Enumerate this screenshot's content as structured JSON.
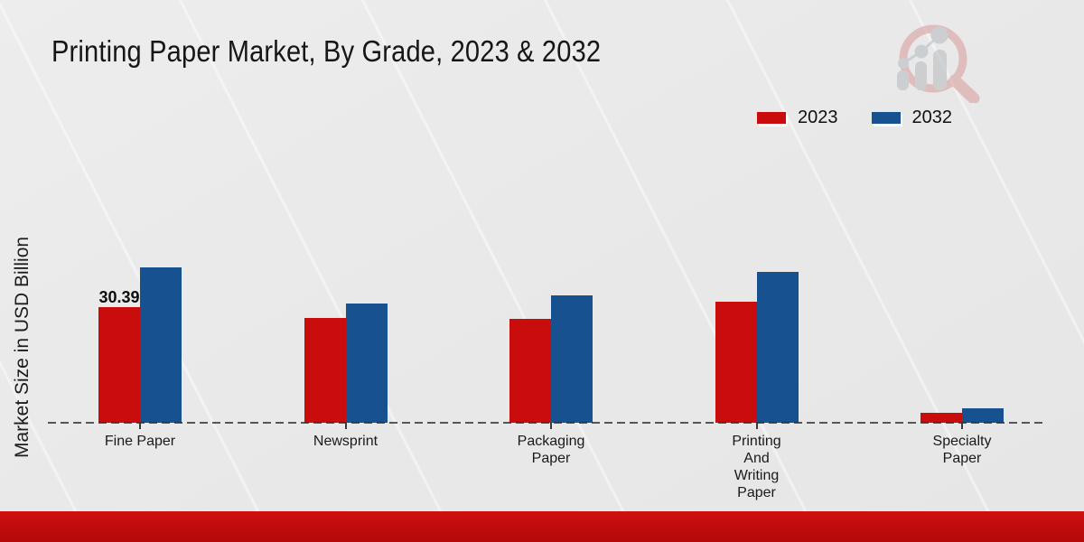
{
  "title": "Printing Paper Market, By Grade, 2023 & 2032",
  "icons": {
    "logo": "magnifier-bar-chart-watermark-icon"
  },
  "colors": {
    "series_2023": "#c90d0d",
    "series_2032": "#17518f",
    "bottom_strip": "#c00b0b",
    "background": "#ebebeb",
    "baseline_dash": "#2d2d2d"
  },
  "chart_data": {
    "type": "bar",
    "title": "Printing Paper Market, By Grade, 2023 & 2032",
    "ylabel": "Market Size in USD Billion",
    "xlabel": "",
    "categories": [
      "Fine Paper",
      "Newsprint",
      "Packaging Paper",
      "Printing And Writing Paper",
      "Specialty Paper"
    ],
    "category_label_lines": [
      [
        "Fine Paper"
      ],
      [
        "Newsprint"
      ],
      [
        "Packaging",
        "Paper"
      ],
      [
        "Printing",
        "And",
        "Writing",
        "Paper"
      ],
      [
        "Specialty",
        "Paper"
      ]
    ],
    "series": [
      {
        "name": "2023",
        "color": "#c90d0d",
        "values": [
          30.39,
          27.5,
          27.3,
          31.8,
          2.6
        ]
      },
      {
        "name": "2032",
        "color": "#17518f",
        "values": [
          40.8,
          31.3,
          33.5,
          39.7,
          3.8
        ]
      }
    ],
    "data_labels": [
      {
        "series": "2023",
        "category": "Fine Paper",
        "text": "30.39"
      }
    ],
    "ylim": [
      0,
      45
    ],
    "grid": false,
    "legend_position": "top-right",
    "baseline_style": "dashed"
  }
}
